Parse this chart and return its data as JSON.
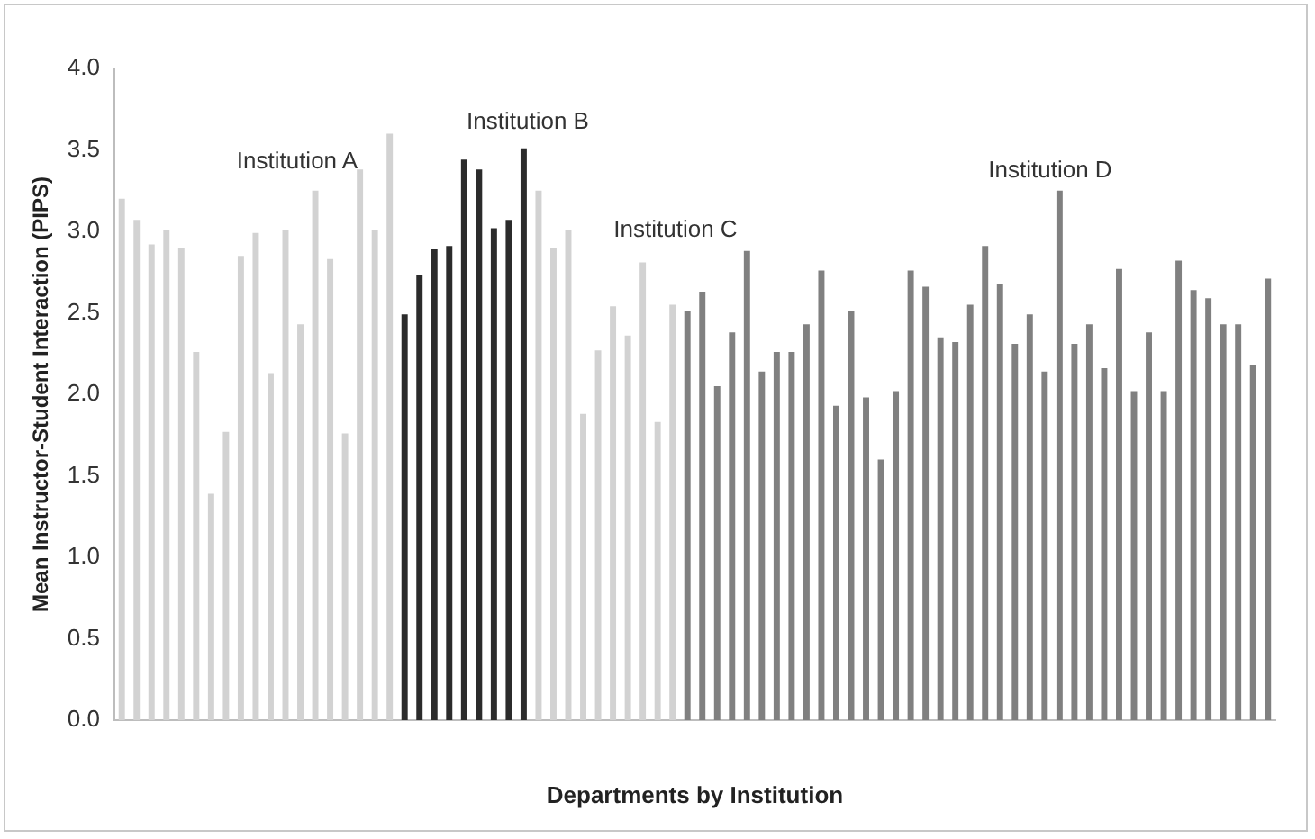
{
  "chart_data": {
    "type": "bar",
    "xlabel": "Departments by Institution",
    "ylabel": "Mean Instructor-Student Interaction (PIPS)",
    "categories": [
      null,
      null,
      null,
      null,
      null,
      null,
      null,
      null,
      null,
      null,
      null,
      null,
      null,
      null,
      null,
      null,
      null,
      null,
      null,
      null,
      null,
      null,
      null,
      null,
      null,
      null,
      null,
      null,
      null,
      null,
      null,
      null,
      null,
      null,
      null,
      null,
      null,
      null,
      null,
      null,
      null,
      null,
      null,
      null,
      null,
      null,
      null,
      null,
      null,
      null,
      null,
      null,
      null,
      null,
      null,
      null,
      null,
      null,
      null,
      null,
      null,
      null,
      null,
      null,
      null,
      null,
      null,
      null,
      null,
      null,
      null,
      null,
      null,
      null,
      null,
      null,
      null,
      null
    ],
    "values": [
      3.2,
      3.07,
      2.92,
      3.01,
      2.9,
      2.26,
      1.39,
      1.77,
      2.85,
      2.99,
      2.13,
      3.01,
      2.43,
      3.25,
      2.83,
      1.76,
      3.38,
      3.01,
      3.6,
      2.49,
      2.73,
      2.89,
      2.91,
      3.44,
      3.38,
      3.02,
      3.07,
      3.51,
      3.25,
      2.9,
      3.01,
      1.88,
      2.27,
      2.54,
      2.36,
      2.81,
      1.83,
      2.55,
      2.51,
      2.63,
      2.05,
      2.38,
      2.88,
      2.14,
      2.26,
      2.26,
      2.43,
      2.76,
      1.93,
      2.51,
      1.98,
      1.6,
      2.02,
      2.76,
      2.66,
      2.35,
      2.32,
      2.55,
      2.91,
      2.68,
      2.31,
      2.49,
      2.14,
      3.25,
      2.31,
      2.43,
      2.16,
      2.77,
      2.02,
      2.38,
      2.02,
      2.82,
      2.64,
      2.59,
      2.43,
      2.43,
      2.18,
      2.71
    ],
    "colors": [
      "#d2d2d2",
      "#d2d2d2",
      "#d2d2d2",
      "#d2d2d2",
      "#d2d2d2",
      "#d2d2d2",
      "#d2d2d2",
      "#d2d2d2",
      "#d2d2d2",
      "#d2d2d2",
      "#d2d2d2",
      "#d2d2d2",
      "#d2d2d2",
      "#d2d2d2",
      "#d2d2d2",
      "#d2d2d2",
      "#d2d2d2",
      "#d2d2d2",
      "#d2d2d2",
      "#2b2b2b",
      "#2b2b2b",
      "#2b2b2b",
      "#2b2b2b",
      "#2b2b2b",
      "#2b2b2b",
      "#2b2b2b",
      "#2b2b2b",
      "#2b2b2b",
      "#d2d2d2",
      "#d2d2d2",
      "#d2d2d2",
      "#d2d2d2",
      "#d2d2d2",
      "#d2d2d2",
      "#d2d2d2",
      "#d2d2d2",
      "#d2d2d2",
      "#d2d2d2",
      "#808080",
      "#808080",
      "#808080",
      "#808080",
      "#808080",
      "#808080",
      "#808080",
      "#808080",
      "#808080",
      "#808080",
      "#808080",
      "#808080",
      "#808080",
      "#808080",
      "#808080",
      "#808080",
      "#808080",
      "#808080",
      "#808080",
      "#808080",
      "#808080",
      "#808080",
      "#808080",
      "#808080",
      "#808080",
      "#808080",
      "#808080",
      "#808080",
      "#808080",
      "#808080",
      "#808080",
      "#808080",
      "#808080",
      "#808080",
      "#808080",
      "#808080",
      "#808080",
      "#808080",
      "#808080",
      "#808080"
    ],
    "ylim": [
      0,
      4
    ],
    "yticks": [
      {
        "value": 0,
        "label": "0.0"
      },
      {
        "value": 0.5,
        "label": "0.5"
      },
      {
        "value": 1,
        "label": "1.0"
      },
      {
        "value": 1.5,
        "label": "1.5"
      },
      {
        "value": 2,
        "label": "2.0"
      },
      {
        "value": 2.5,
        "label": "2.5"
      },
      {
        "value": 3,
        "label": "3.0"
      },
      {
        "value": 3.5,
        "label": "3.5"
      },
      {
        "value": 4,
        "label": "4.0"
      }
    ],
    "grid": false,
    "legend": false,
    "annotations": [
      "Institution A",
      "Institution B",
      "Institution C",
      "Institution D"
    ]
  }
}
